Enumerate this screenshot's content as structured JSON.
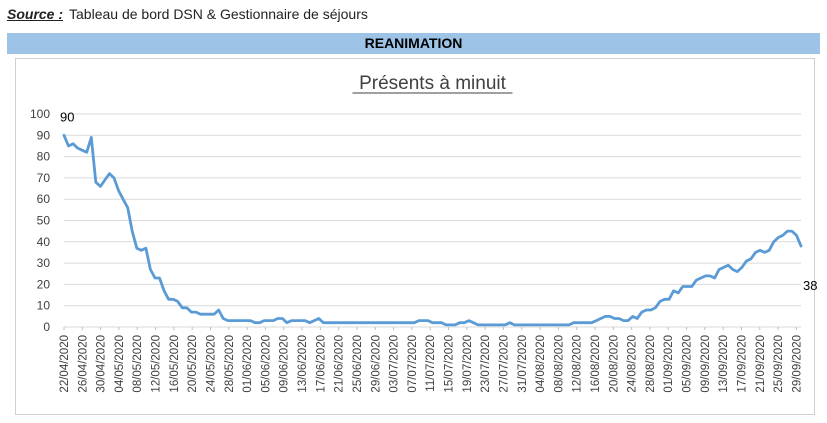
{
  "source": {
    "label": "Source :",
    "text": "Tableau de bord DSN & Gestionnaire de séjours"
  },
  "band": {
    "title": "REANIMATION",
    "color": "#9dc3e6"
  },
  "chart_data": {
    "type": "line",
    "title": "Présents à minuit",
    "xlabel": "",
    "ylabel": "",
    "ylim": [
      0,
      100
    ],
    "yticks": [
      0,
      10,
      20,
      30,
      40,
      50,
      60,
      70,
      80,
      90,
      100
    ],
    "grid": true,
    "legend": "none",
    "line_color": "#5b9bd5",
    "x_tick_labels": [
      "22/04/2020",
      "26/04/2020",
      "30/04/2020",
      "04/05/2020",
      "08/05/2020",
      "12/05/2020",
      "16/05/2020",
      "20/05/2020",
      "24/05/2020",
      "28/05/2020",
      "01/06/2020",
      "05/06/2020",
      "09/06/2020",
      "13/06/2020",
      "17/06/2020",
      "21/06/2020",
      "25/06/2020",
      "29/06/2020",
      "03/07/2020",
      "07/07/2020",
      "11/07/2020",
      "15/07/2020",
      "19/07/2020",
      "23/07/2020",
      "27/07/2020",
      "31/07/2020",
      "04/08/2020",
      "08/08/2020",
      "12/08/2020",
      "16/08/2020",
      "20/08/2020",
      "24/08/2020",
      "28/08/2020",
      "01/09/2020",
      "05/09/2020",
      "09/09/2020",
      "13/09/2020",
      "17/09/2020",
      "21/09/2020",
      "25/09/2020",
      "29/09/2020"
    ],
    "annotations": [
      {
        "x": "22/04/2020",
        "y": 90,
        "text": "90"
      },
      {
        "x": "30/09/2020",
        "y": 38,
        "text": "38"
      }
    ],
    "series": [
      {
        "start_date": "22/04/2020",
        "end_date": "30/09/2020",
        "values": [
          90,
          85,
          86,
          84,
          83,
          82,
          89,
          68,
          66,
          69,
          72,
          70,
          64,
          60,
          56,
          45,
          37,
          36,
          37,
          27,
          23,
          23,
          17,
          13,
          13,
          12,
          9,
          9,
          7,
          7,
          6,
          6,
          6,
          6,
          8,
          4,
          3,
          3,
          3,
          3,
          3,
          3,
          2,
          2,
          3,
          3,
          3,
          4,
          4,
          2,
          3,
          3,
          3,
          3,
          2,
          3,
          4,
          2,
          2,
          2,
          2,
          2,
          2,
          2,
          2,
          2,
          2,
          2,
          2,
          2,
          2,
          2,
          2,
          2,
          2,
          2,
          2,
          2,
          3,
          3,
          3,
          2,
          2,
          2,
          1,
          1,
          1,
          2,
          2,
          3,
          2,
          1,
          1,
          1,
          1,
          1,
          1,
          1,
          2,
          1,
          1,
          1,
          1,
          1,
          1,
          1,
          1,
          1,
          1,
          1,
          1,
          1,
          2,
          2,
          2,
          2,
          2,
          3,
          4,
          5,
          5,
          4,
          4,
          3,
          3,
          5,
          4,
          7,
          8,
          8,
          9,
          12,
          13,
          13,
          17,
          16,
          19,
          19,
          19,
          22,
          23,
          24,
          24,
          23,
          27,
          28,
          29,
          27,
          26,
          28,
          31,
          32,
          35,
          36,
          35,
          36,
          40,
          42,
          43,
          45,
          45,
          43,
          38
        ]
      }
    ]
  }
}
